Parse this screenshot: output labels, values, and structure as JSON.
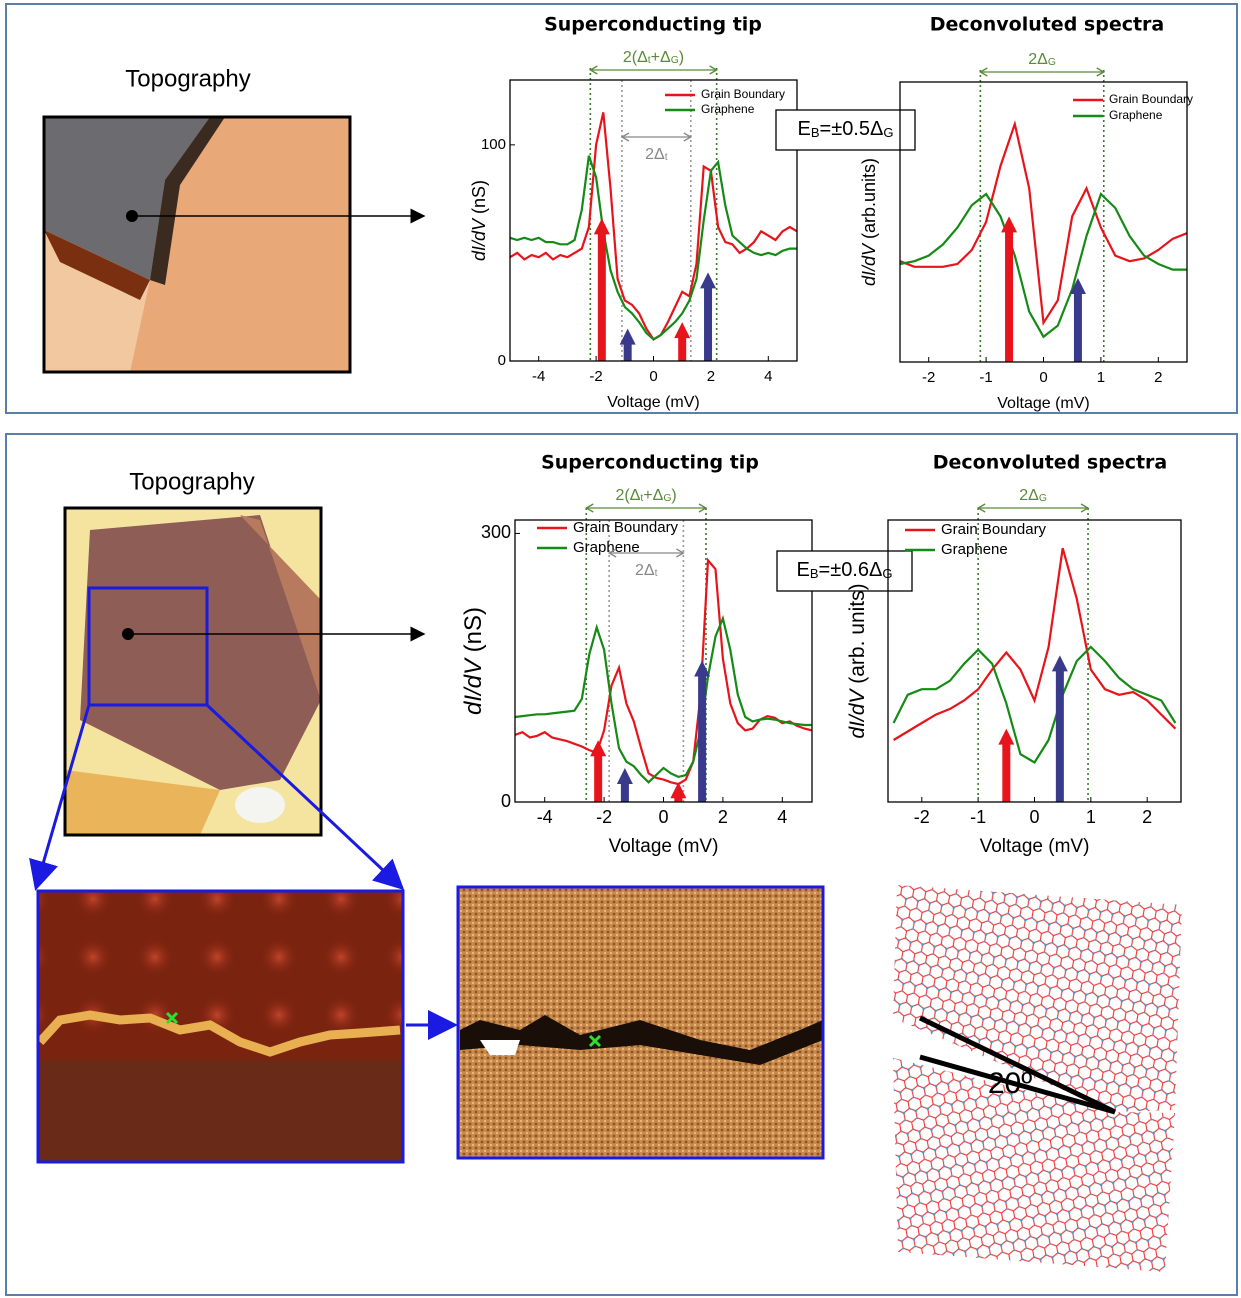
{
  "chart_data": [
    {
      "type": "line",
      "title": "Superconducting tip",
      "xlabel": "Voltage (mV)",
      "ylabel_parts": [
        "dI/dV",
        " (nS)"
      ],
      "x": [
        -5,
        -4.75,
        -4.5,
        -4.25,
        -4,
        -3.75,
        -3.5,
        -3.25,
        -3,
        -2.75,
        -2.5,
        -2.25,
        -2,
        -1.75,
        -1.5,
        -1.25,
        -1,
        -0.75,
        -0.5,
        -0.25,
        0,
        0.25,
        0.5,
        0.75,
        1,
        1.25,
        1.5,
        1.75,
        2,
        2.25,
        2.5,
        2.75,
        3,
        3.25,
        3.5,
        3.75,
        4,
        4.25,
        4.5,
        4.75,
        5
      ],
      "xlim": [
        -5,
        5
      ],
      "xticks": [
        -4,
        -2,
        0,
        2,
        4
      ],
      "ylim": [
        0,
        130
      ],
      "yticks": [
        0,
        100
      ],
      "series": [
        {
          "name": "Grain Boundary",
          "color": "#e8141b",
          "values": [
            48,
            50,
            47,
            49,
            48,
            50,
            47,
            49,
            48,
            50,
            52,
            62,
            100,
            115,
            80,
            38,
            28,
            26,
            22,
            15,
            10,
            12,
            18,
            25,
            32,
            30,
            45,
            90,
            88,
            62,
            55,
            54,
            50,
            52,
            55,
            60,
            58,
            56,
            60,
            62,
            60
          ]
        },
        {
          "name": "Graphene",
          "color": "#168a16",
          "values": [
            57,
            56,
            57,
            56,
            57,
            55,
            55,
            54,
            54,
            56,
            70,
            95,
            85,
            60,
            42,
            32,
            25,
            22,
            18,
            13,
            10,
            12,
            15,
            18,
            22,
            28,
            38,
            65,
            88,
            92,
            72,
            58,
            55,
            52,
            50,
            49,
            50,
            49,
            51,
            52,
            52
          ]
        }
      ],
      "vlines": [
        {
          "x": -2.2,
          "color": "#3a7a2a"
        },
        {
          "x": 2.2,
          "color": "#3a7a2a"
        },
        {
          "x": -1.1,
          "color": "#999999"
        },
        {
          "x": 1.3,
          "color": "#999999"
        }
      ],
      "arrows": [
        {
          "x": -1.8,
          "y": 66,
          "color": "#e8141b"
        },
        {
          "x": -0.9,
          "y": 15,
          "color": "#3a3a8c"
        },
        {
          "x": 1.0,
          "y": 18,
          "color": "#e8141b"
        },
        {
          "x": 1.9,
          "y": 41,
          "color": "#3a3a8c"
        }
      ],
      "spans": [
        {
          "x1": -2.2,
          "x2": 2.2,
          "color": "#5a8a3a",
          "label_parts": [
            "2(Δ",
            "t",
            "+Δ",
            "G",
            ")"
          ]
        },
        {
          "x1": -1.1,
          "x2": 1.3,
          "color": "#888888",
          "label_parts": [
            "2Δ",
            "t"
          ]
        }
      ],
      "annotation_parts": [
        "E",
        "B",
        "=±0.5Δ",
        "G"
      ]
    },
    {
      "type": "line",
      "title": "Deconvoluted spectra",
      "xlabel": "Voltage (mV)",
      "ylabel_parts": [
        "dI/dV",
        " (arb.units)"
      ],
      "x": [
        -2.5,
        -2.25,
        -2,
        -1.75,
        -1.5,
        -1.25,
        -1,
        -0.75,
        -0.5,
        -0.25,
        0,
        0.25,
        0.5,
        0.75,
        1,
        1.25,
        1.5,
        1.75,
        2,
        2.25,
        2.5
      ],
      "xlim": [
        -2.5,
        2.5
      ],
      "xticks": [
        -2,
        -1,
        0,
        1,
        2
      ],
      "ylim": [
        0,
        1
      ],
      "series": [
        {
          "name": "Grain Boundary",
          "color": "#e8141b",
          "values": [
            0.36,
            0.34,
            0.34,
            0.34,
            0.35,
            0.4,
            0.5,
            0.7,
            0.85,
            0.62,
            0.14,
            0.22,
            0.52,
            0.62,
            0.48,
            0.38,
            0.36,
            0.37,
            0.4,
            0.44,
            0.46
          ]
        },
        {
          "name": "Graphene",
          "color": "#168a16",
          "values": [
            0.35,
            0.36,
            0.38,
            0.42,
            0.48,
            0.56,
            0.6,
            0.52,
            0.38,
            0.18,
            0.09,
            0.13,
            0.26,
            0.45,
            0.6,
            0.55,
            0.45,
            0.38,
            0.35,
            0.33,
            0.33
          ]
        }
      ],
      "vlines": [
        {
          "x": -1.1,
          "color": "#3a7a2a"
        },
        {
          "x": 1.05,
          "color": "#3a7a2a"
        }
      ],
      "arrows": [
        {
          "x": -0.6,
          "y": 0.52,
          "color": "#e8141b"
        },
        {
          "x": 0.6,
          "y": 0.3,
          "color": "#3a3a8c"
        }
      ],
      "spans": [
        {
          "x1": -1.1,
          "x2": 1.05,
          "color": "#5a8a3a",
          "label_parts": [
            "2Δ",
            "G"
          ]
        }
      ]
    },
    {
      "type": "line",
      "title": "Superconducting tip",
      "xlabel": "Voltage (mV)",
      "ylabel_parts": [
        "dI/dV",
        " (nS)"
      ],
      "x": [
        -5,
        -4.75,
        -4.5,
        -4.25,
        -4,
        -3.75,
        -3.5,
        -3.25,
        -3,
        -2.75,
        -2.5,
        -2.25,
        -2,
        -1.75,
        -1.5,
        -1.25,
        -1,
        -0.75,
        -0.5,
        -0.25,
        0,
        0.25,
        0.5,
        0.75,
        1,
        1.25,
        1.5,
        1.75,
        2,
        2.25,
        2.5,
        2.75,
        3,
        3.25,
        3.5,
        3.75,
        4,
        4.25,
        4.5,
        4.75,
        5
      ],
      "xlim": [
        -5,
        5
      ],
      "xticks": [
        -4,
        -2,
        0,
        2,
        4
      ],
      "ylim": [
        0,
        315
      ],
      "yticks": [
        0,
        300
      ],
      "series": [
        {
          "name": "Grain Boundary",
          "color": "#e8141b",
          "values": [
            75,
            78,
            72,
            74,
            78,
            72,
            70,
            68,
            65,
            62,
            58,
            55,
            80,
            130,
            150,
            110,
            90,
            60,
            32,
            27,
            25,
            22,
            20,
            25,
            45,
            120,
            270,
            260,
            160,
            110,
            88,
            80,
            82,
            92,
            96,
            94,
            88,
            90,
            85,
            82,
            80
          ]
        },
        {
          "name": "Graphene",
          "color": "#168a16",
          "values": [
            95,
            96,
            97,
            98,
            98,
            99,
            100,
            101,
            102,
            115,
            165,
            195,
            170,
            110,
            60,
            45,
            40,
            30,
            22,
            30,
            38,
            32,
            28,
            30,
            45,
            80,
            140,
            185,
            205,
            170,
            120,
            95,
            90,
            92,
            93,
            92,
            90,
            88,
            87,
            86,
            86
          ]
        }
      ],
      "vlines": [
        {
          "x": -2.6,
          "color": "#3a7a2a"
        },
        {
          "x": 1.43,
          "color": "#3a7a2a"
        },
        {
          "x": -1.83,
          "color": "#999999"
        },
        {
          "x": 0.67,
          "color": "#999999"
        }
      ],
      "arrows": [
        {
          "x": -2.2,
          "y": 69,
          "color": "#e8141b"
        },
        {
          "x": -1.3,
          "y": 38,
          "color": "#3a3a8c"
        },
        {
          "x": 0.5,
          "y": 22,
          "color": "#e8141b"
        },
        {
          "x": 1.3,
          "y": 158,
          "color": "#3a3a8c"
        }
      ],
      "spans": [
        {
          "x1": -2.6,
          "x2": 1.43,
          "color": "#5a8a3a",
          "label_parts": [
            "2(Δ",
            "t",
            "+Δ",
            "G",
            ")"
          ]
        },
        {
          "x1": -1.83,
          "x2": 0.67,
          "color": "#888888",
          "label_parts": [
            "2Δ",
            "t"
          ]
        }
      ],
      "annotation_parts": [
        "E",
        "B",
        "=±0.6Δ",
        "G"
      ]
    },
    {
      "type": "line",
      "title": "Deconvoluted spectra",
      "xlabel": "Voltage (mV)",
      "ylabel_parts": [
        "dI/dV",
        " (arb. units)"
      ],
      "x": [
        -2.5,
        -2.25,
        -2,
        -1.75,
        -1.5,
        -1.25,
        -1,
        -0.75,
        -0.5,
        -0.25,
        0,
        0.25,
        0.5,
        0.75,
        1,
        1.25,
        1.5,
        1.75,
        2,
        2.25,
        2.5
      ],
      "xlim": [
        -2.6,
        2.6
      ],
      "xticks": [
        -2,
        -1,
        0,
        1,
        2
      ],
      "ylim": [
        0,
        1
      ],
      "series": [
        {
          "name": "Grain Boundary",
          "color": "#e8141b",
          "values": [
            0.22,
            0.25,
            0.28,
            0.31,
            0.33,
            0.36,
            0.4,
            0.47,
            0.53,
            0.47,
            0.36,
            0.55,
            0.9,
            0.72,
            0.47,
            0.4,
            0.38,
            0.39,
            0.36,
            0.31,
            0.26
          ]
        },
        {
          "name": "Graphene",
          "color": "#168a16",
          "values": [
            0.28,
            0.38,
            0.4,
            0.4,
            0.43,
            0.49,
            0.54,
            0.49,
            0.35,
            0.17,
            0.14,
            0.22,
            0.38,
            0.5,
            0.55,
            0.5,
            0.44,
            0.4,
            0.38,
            0.36,
            0.28
          ]
        }
      ],
      "vlines": [
        {
          "x": -1.0,
          "color": "#3a7a2a"
        },
        {
          "x": 0.95,
          "color": "#3a7a2a"
        }
      ],
      "arrows": [
        {
          "x": -0.5,
          "y": 0.26,
          "color": "#e8141b"
        },
        {
          "x": 0.45,
          "y": 0.52,
          "color": "#3a3a8c"
        }
      ],
      "spans": [
        {
          "x1": -1.0,
          "x2": 0.95,
          "color": "#5a8a3a",
          "label_parts": [
            "2Δ",
            "G"
          ]
        }
      ]
    }
  ],
  "panels": [
    {
      "image_label": "Topography"
    },
    {
      "image_label": "Topography"
    }
  ],
  "lattice": {
    "angle_label": "20º"
  }
}
